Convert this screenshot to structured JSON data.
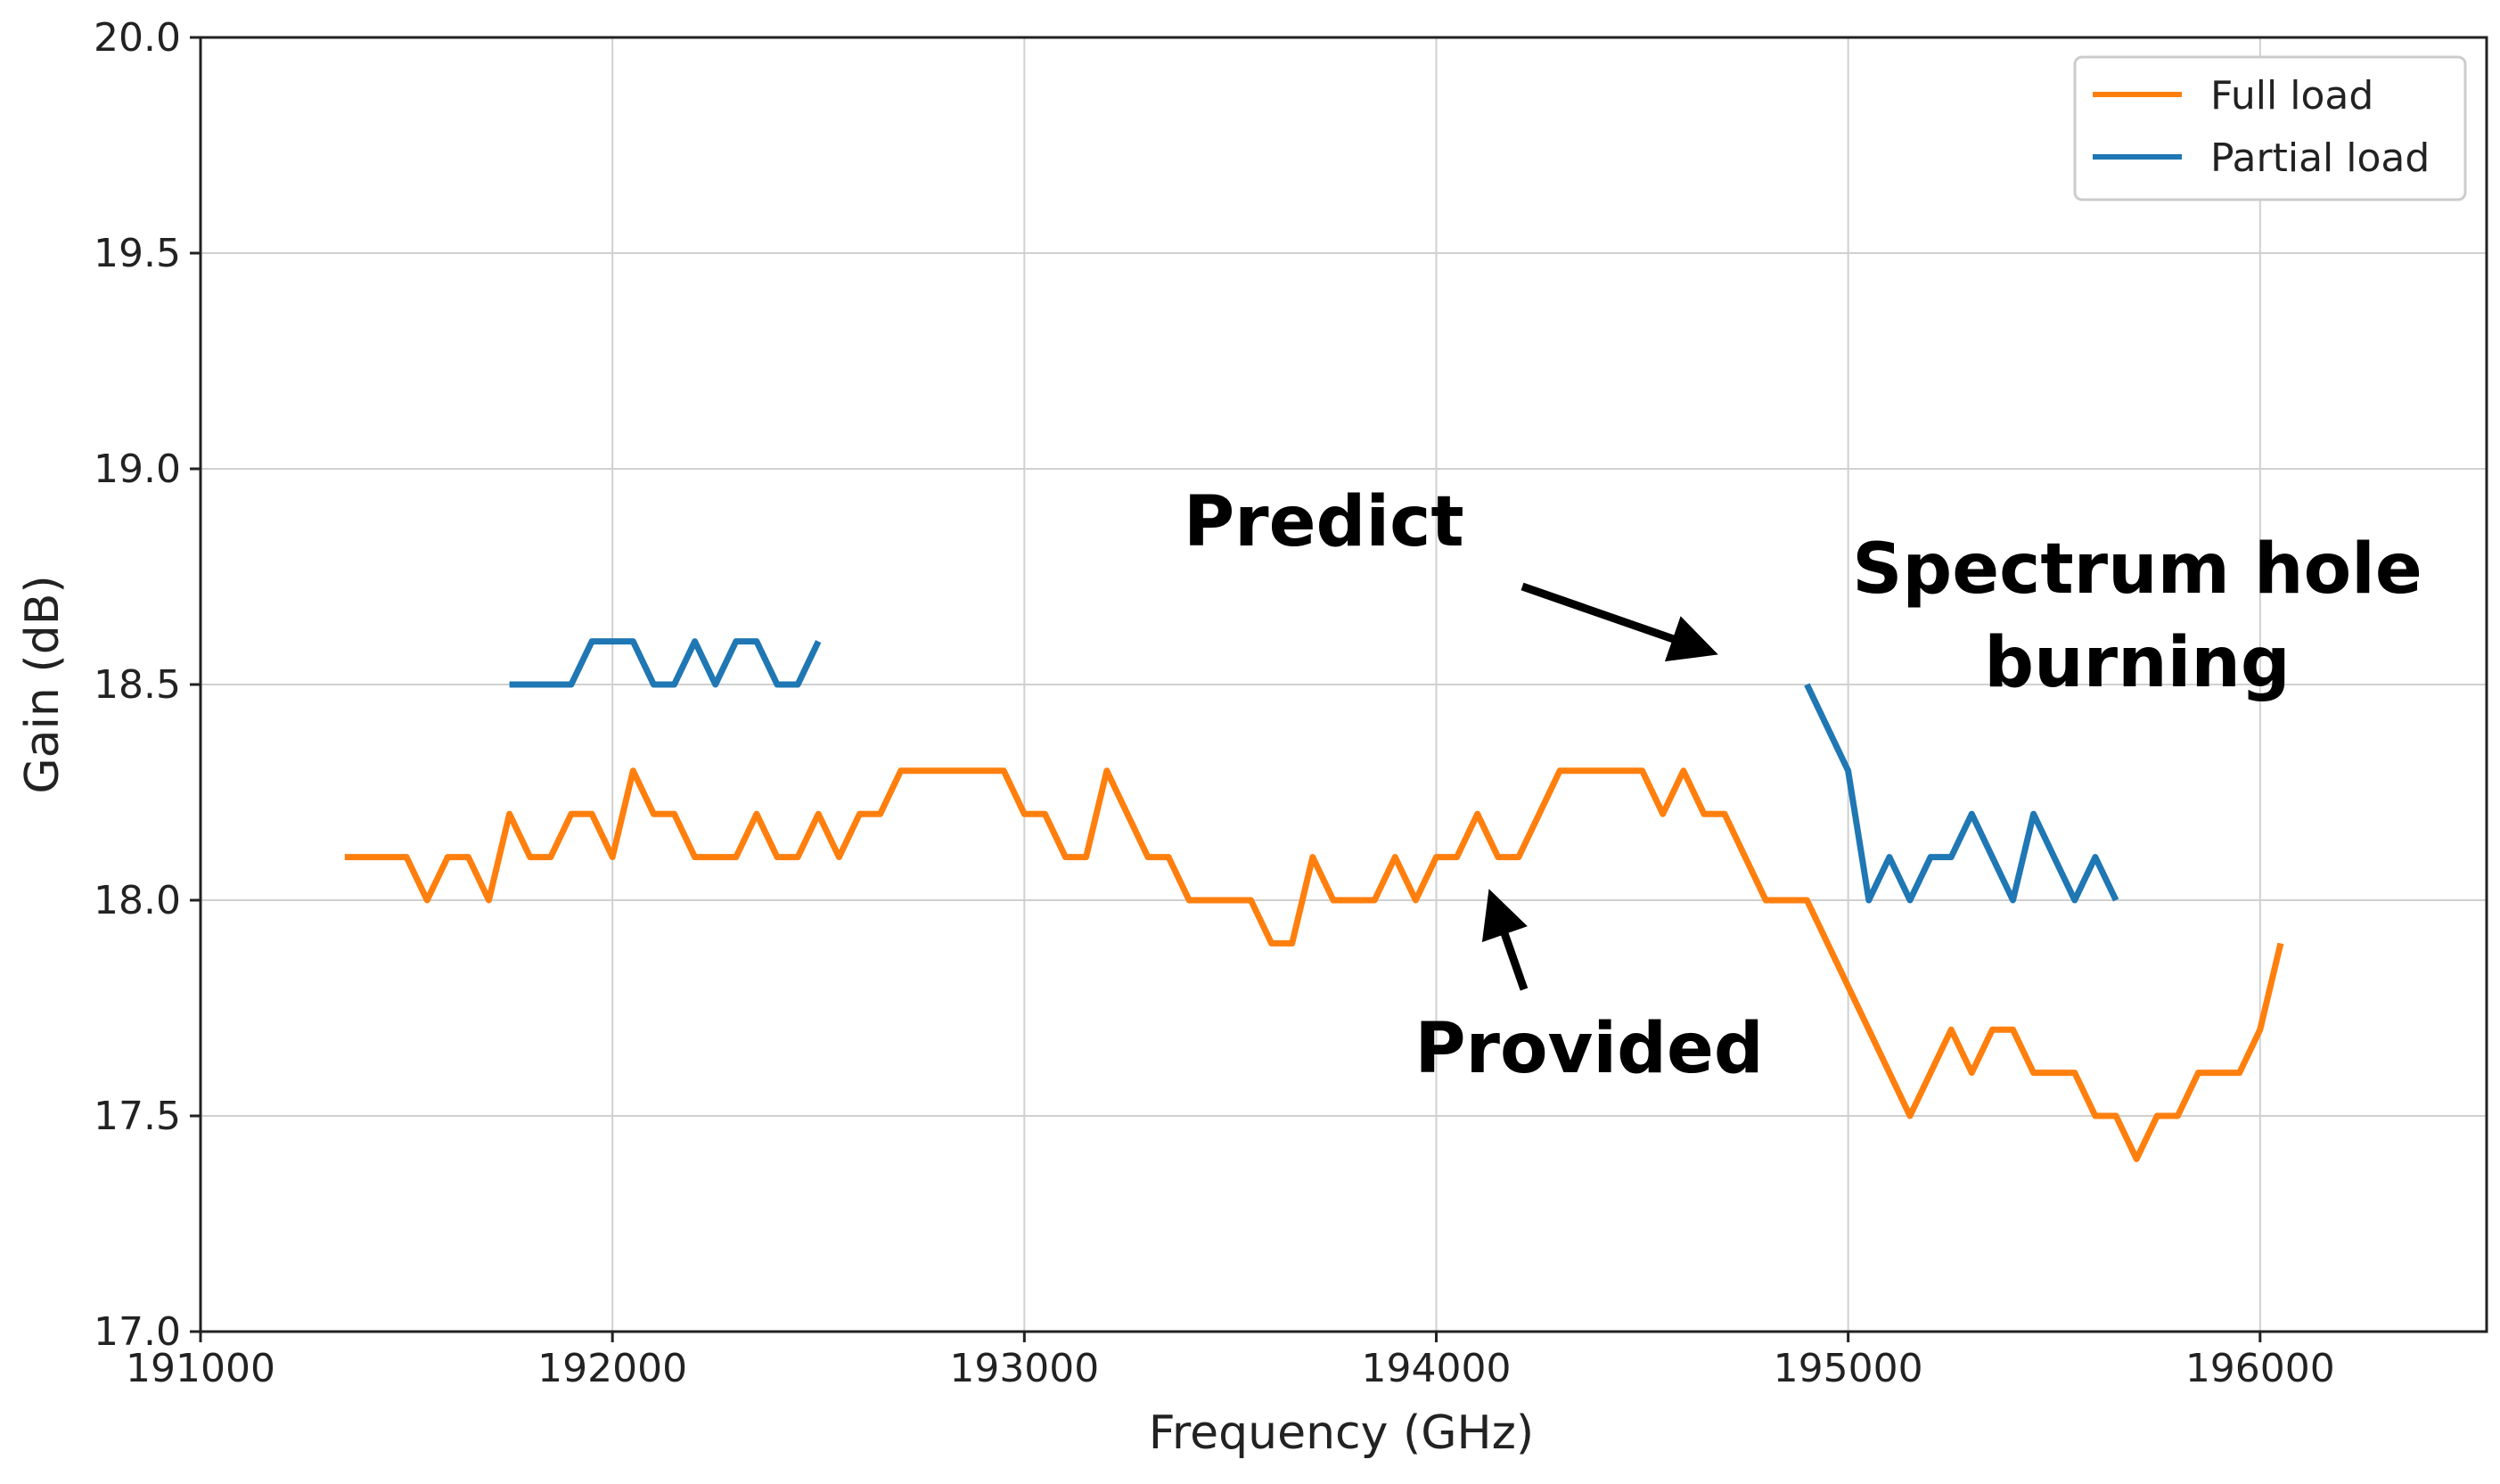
{
  "chart_data": {
    "type": "line",
    "title": "",
    "xlabel": "Frequency (GHz)",
    "ylabel": "Gain (dB)",
    "xlim": [
      191000,
      196550
    ],
    "ylim": [
      17.0,
      20.0
    ],
    "x_ticks": [
      "191000",
      "192000",
      "193000",
      "194000",
      "195000",
      "196000"
    ],
    "y_ticks": [
      "17.0",
      "17.5",
      "18.0",
      "18.5",
      "19.0",
      "19.5",
      "20.0"
    ],
    "grid": true,
    "legend_position": "top-right",
    "series": [
      {
        "name": "Full load",
        "color": "#ff7f0e",
        "points": [
          [
            191350,
            18.1
          ],
          [
            191400,
            18.1
          ],
          [
            191450,
            18.1
          ],
          [
            191500,
            18.1
          ],
          [
            191550,
            18.0
          ],
          [
            191600,
            18.1
          ],
          [
            191650,
            18.1
          ],
          [
            191700,
            18.0
          ],
          [
            191750,
            18.2
          ],
          [
            191800,
            18.1
          ],
          [
            191850,
            18.1
          ],
          [
            191900,
            18.2
          ],
          [
            191950,
            18.2
          ],
          [
            192000,
            18.1
          ],
          [
            192050,
            18.3
          ],
          [
            192100,
            18.2
          ],
          [
            192150,
            18.2
          ],
          [
            192200,
            18.1
          ],
          [
            192250,
            18.1
          ],
          [
            192300,
            18.1
          ],
          [
            192350,
            18.2
          ],
          [
            192400,
            18.1
          ],
          [
            192450,
            18.1
          ],
          [
            192500,
            18.2
          ],
          [
            192550,
            18.1
          ],
          [
            192600,
            18.2
          ],
          [
            192650,
            18.2
          ],
          [
            192700,
            18.3
          ],
          [
            192750,
            18.3
          ],
          [
            192800,
            18.3
          ],
          [
            192850,
            18.3
          ],
          [
            192900,
            18.3
          ],
          [
            192950,
            18.3
          ],
          [
            193000,
            18.2
          ],
          [
            193050,
            18.2
          ],
          [
            193100,
            18.1
          ],
          [
            193150,
            18.1
          ],
          [
            193200,
            18.3
          ],
          [
            193250,
            18.2
          ],
          [
            193300,
            18.1
          ],
          [
            193350,
            18.1
          ],
          [
            193400,
            18.0
          ],
          [
            193450,
            18.0
          ],
          [
            193500,
            18.0
          ],
          [
            193550,
            18.0
          ],
          [
            193600,
            17.9
          ],
          [
            193650,
            17.9
          ],
          [
            193700,
            18.1
          ],
          [
            193750,
            18.0
          ],
          [
            193800,
            18.0
          ],
          [
            193850,
            18.0
          ],
          [
            193900,
            18.1
          ],
          [
            193950,
            18.0
          ],
          [
            194000,
            18.1
          ],
          [
            194050,
            18.1
          ],
          [
            194100,
            18.2
          ],
          [
            194150,
            18.1
          ],
          [
            194200,
            18.1
          ],
          [
            194250,
            18.2
          ],
          [
            194300,
            18.3
          ],
          [
            194350,
            18.3
          ],
          [
            194400,
            18.3
          ],
          [
            194450,
            18.3
          ],
          [
            194500,
            18.3
          ],
          [
            194550,
            18.2
          ],
          [
            194600,
            18.3
          ],
          [
            194650,
            18.2
          ],
          [
            194700,
            18.2
          ],
          [
            194750,
            18.1
          ],
          [
            194800,
            18.0
          ],
          [
            194850,
            18.0
          ],
          [
            194900,
            18.0
          ],
          [
            195000,
            17.8
          ],
          [
            195050,
            17.7
          ],
          [
            195100,
            17.6
          ],
          [
            195150,
            17.5
          ],
          [
            195200,
            17.6
          ],
          [
            195250,
            17.7
          ],
          [
            195300,
            17.6
          ],
          [
            195350,
            17.7
          ],
          [
            195400,
            17.7
          ],
          [
            195450,
            17.6
          ],
          [
            195500,
            17.6
          ],
          [
            195550,
            17.6
          ],
          [
            195600,
            17.5
          ],
          [
            195650,
            17.5
          ],
          [
            195700,
            17.4
          ],
          [
            195750,
            17.5
          ],
          [
            195800,
            17.5
          ],
          [
            195850,
            17.6
          ],
          [
            195900,
            17.6
          ],
          [
            195950,
            17.6
          ],
          [
            196000,
            17.7
          ],
          [
            196050,
            17.9
          ]
        ]
      },
      {
        "name": "Partial load",
        "color": "#1f77b4",
        "segments": [
          [
            [
              191750,
              18.5
            ],
            [
              191800,
              18.5
            ],
            [
              191850,
              18.5
            ],
            [
              191900,
              18.5
            ],
            [
              191950,
              18.6
            ],
            [
              192000,
              18.6
            ],
            [
              192050,
              18.6
            ],
            [
              192100,
              18.5
            ],
            [
              192150,
              18.5
            ],
            [
              192200,
              18.6
            ],
            [
              192250,
              18.5
            ],
            [
              192300,
              18.6
            ],
            [
              192350,
              18.6
            ],
            [
              192400,
              18.5
            ],
            [
              192450,
              18.5
            ],
            [
              192500,
              18.6
            ]
          ],
          [
            [
              194900,
              18.5
            ],
            [
              195000,
              18.3
            ],
            [
              195050,
              18.0
            ],
            [
              195100,
              18.1
            ],
            [
              195150,
              18.0
            ],
            [
              195200,
              18.1
            ],
            [
              195250,
              18.1
            ],
            [
              195300,
              18.2
            ],
            [
              195350,
              18.1
            ],
            [
              195400,
              18.0
            ],
            [
              195450,
              18.2
            ],
            [
              195500,
              18.1
            ],
            [
              195550,
              18.0
            ],
            [
              195600,
              18.1
            ],
            [
              195650,
              18.0
            ]
          ]
        ]
      }
    ],
    "annotations": [
      {
        "text": "Predict"
      },
      {
        "text": "Spectrum hole"
      },
      {
        "text": "burning"
      },
      {
        "text": "Provided"
      }
    ]
  }
}
